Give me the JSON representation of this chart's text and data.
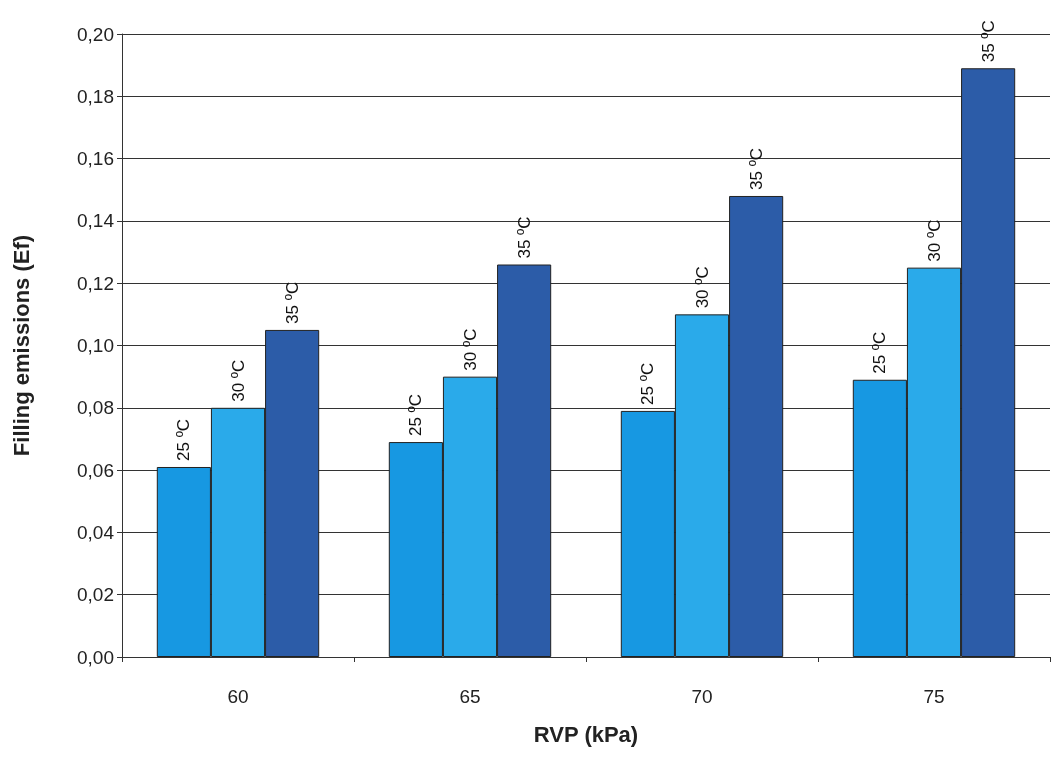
{
  "chart_data": {
    "type": "bar",
    "xlabel": "RVP (kPa)",
    "ylabel": "Filling emissions (Ef)",
    "categories": [
      "60",
      "65",
      "70",
      "75"
    ],
    "series": [
      {
        "name": "25 ºC",
        "color": "#1798e2",
        "values": [
          0.061,
          0.069,
          0.079,
          0.089
        ]
      },
      {
        "name": "30 ºC",
        "color": "#2aaaea",
        "values": [
          0.08,
          0.09,
          0.11,
          0.125
        ]
      },
      {
        "name": "35 ºC",
        "color": "#2c5ca8",
        "values": [
          0.105,
          0.126,
          0.148,
          0.189
        ]
      }
    ],
    "ylim": [
      0,
      0.2
    ],
    "yticks": [
      {
        "value": 0,
        "label": "0,00"
      },
      {
        "value": 0.02,
        "label": "0,02"
      },
      {
        "value": 0.04,
        "label": "0,04"
      },
      {
        "value": 0.06,
        "label": "0,06"
      },
      {
        "value": 0.08,
        "label": "0,08"
      },
      {
        "value": 0.1,
        "label": "0,10"
      },
      {
        "value": 0.12,
        "label": "0,12"
      },
      {
        "value": 0.14,
        "label": "0,14"
      },
      {
        "value": 0.16,
        "label": "0,16"
      },
      {
        "value": 0.18,
        "label": "0,18"
      },
      {
        "value": 0.2,
        "label": "0,20"
      }
    ],
    "grid": "y",
    "legend": false
  }
}
